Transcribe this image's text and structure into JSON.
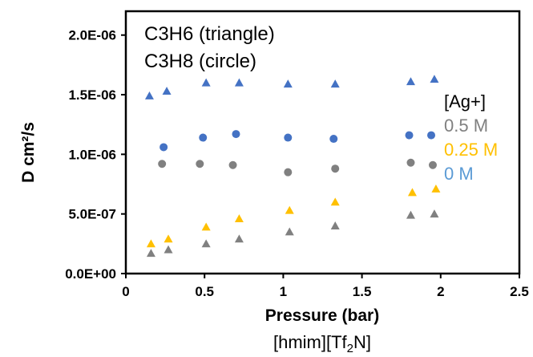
{
  "chart_data": {
    "type": "scatter",
    "title": "",
    "xlabel": "Pressure (bar)",
    "ylabel": "D cm²/s",
    "xlim": [
      0,
      2.5
    ],
    "ylim": [
      0,
      2.2e-06
    ],
    "x_ticks": [
      "0",
      "0.5",
      "1",
      "1.5",
      "2",
      "2.5"
    ],
    "x_tick_values": [
      0,
      0.5,
      1,
      1.5,
      2,
      2.5
    ],
    "y_ticks": [
      "0.0E+00",
      "5.0E-07",
      "1.0E-06",
      "1.5E-06",
      "2.0E-06"
    ],
    "y_tick_values": [
      0,
      5e-07,
      1e-06,
      1.5e-06,
      2e-06
    ],
    "grid": false,
    "annotations": [
      "C3H6 (triangle)",
      "C3H8 (circle)"
    ],
    "legend_title": "[Ag+]",
    "legend_position": "right",
    "legend_items": [
      {
        "label": "0.5 M",
        "color": "#808080"
      },
      {
        "label": "0.25 M",
        "color": "#FFC000"
      },
      {
        "label": "0 M",
        "color": "#5B9BD5"
      }
    ],
    "series": [
      {
        "gas": "C3H6",
        "marker": "triangle",
        "color": "#4472C4",
        "x": [
          0.15,
          0.26,
          0.51,
          0.72,
          1.03,
          1.33,
          1.81,
          1.96
        ],
        "y": [
          1.49e-06,
          1.53e-06,
          1.6e-06,
          1.6e-06,
          1.59e-06,
          1.59e-06,
          1.61e-06,
          1.63e-06
        ]
      },
      {
        "gas": "C3H8",
        "marker": "circle",
        "color": "#4472C4",
        "x": [
          0.24,
          0.49,
          0.7,
          1.03,
          1.32,
          1.8,
          1.94
        ],
        "y": [
          1.06e-06,
          1.14e-06,
          1.17e-06,
          1.14e-06,
          1.13e-06,
          1.16e-06,
          1.16e-06
        ]
      },
      {
        "gas": "C3H8",
        "marker": "circle",
        "color": "#808080",
        "x": [
          0.23,
          0.47,
          0.68,
          1.03,
          1.33,
          1.81,
          1.95
        ],
        "y": [
          9.2e-07,
          9.2e-07,
          9.1e-07,
          8.5e-07,
          8.8e-07,
          9.3e-07,
          9.1e-07
        ]
      },
      {
        "gas": "C3H6",
        "marker": "triangle",
        "color": "#FFC000",
        "x": [
          0.16,
          0.27,
          0.51,
          0.72,
          1.04,
          1.33,
          1.82,
          1.97
        ],
        "y": [
          2.5e-07,
          2.9e-07,
          3.9e-07,
          4.6e-07,
          5.3e-07,
          6e-07,
          6.8e-07,
          7.1e-07
        ]
      },
      {
        "gas": "C3H6",
        "marker": "triangle",
        "color": "#808080",
        "x": [
          0.16,
          0.27,
          0.51,
          0.72,
          1.04,
          1.33,
          1.81,
          1.96
        ],
        "y": [
          1.7e-07,
          2e-07,
          2.5e-07,
          2.9e-07,
          3.5e-07,
          4e-07,
          4.9e-07,
          5e-07
        ]
      }
    ]
  },
  "caption": {
    "prefix": "[hmim][Tf",
    "subscript": "2",
    "suffix": "N]"
  }
}
